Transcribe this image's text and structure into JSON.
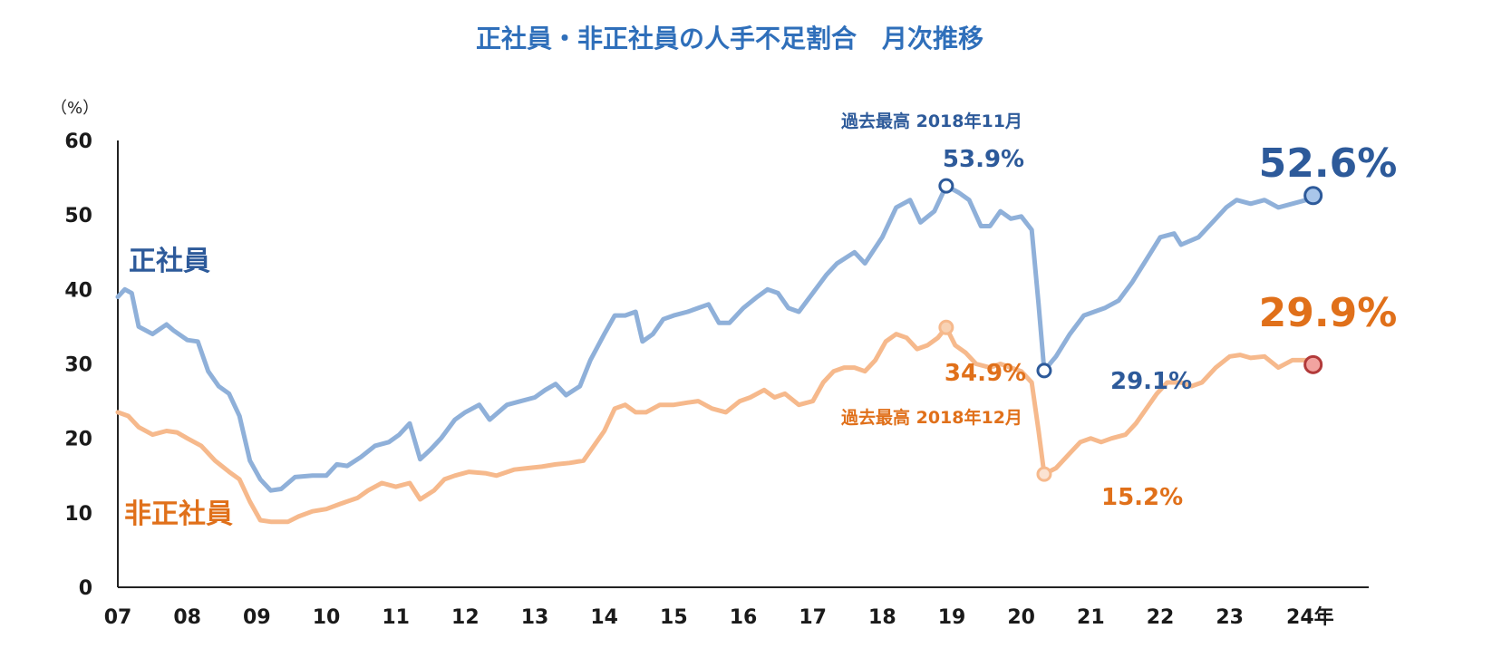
{
  "chart_data": {
    "type": "line",
    "title": "正社員・非正社員の人手不足割合　月次推移",
    "ylabel": "（%）",
    "xlabel": "",
    "ylim": [
      0,
      60
    ],
    "yticks": [
      "0",
      "10",
      "20",
      "30",
      "40",
      "50",
      "60"
    ],
    "xticks": [
      "07",
      "08",
      "09",
      "10",
      "11",
      "12",
      "13",
      "14",
      "15",
      "16",
      "17",
      "18",
      "19",
      "20",
      "21",
      "22",
      "23",
      "24年"
    ],
    "colors": {
      "regular": "#8fb0d9",
      "nonregular": "#f6b98c",
      "regular_text": "#2d5a9a",
      "nonregular_text": "#e0701a",
      "title": "#2f6fba"
    },
    "series": [
      {
        "name": "正社員",
        "values": [
          [
            2007.0,
            39
          ],
          [
            2007.1,
            40
          ],
          [
            2007.2,
            39.5
          ],
          [
            2007.3,
            35
          ],
          [
            2007.5,
            34
          ],
          [
            2007.7,
            35.3
          ],
          [
            2007.8,
            34.5
          ],
          [
            2008.0,
            33.2
          ],
          [
            2008.15,
            33
          ],
          [
            2008.3,
            29
          ],
          [
            2008.45,
            27
          ],
          [
            2008.6,
            26
          ],
          [
            2008.75,
            23
          ],
          [
            2008.9,
            17
          ],
          [
            2009.05,
            14.5
          ],
          [
            2009.2,
            13
          ],
          [
            2009.35,
            13.2
          ],
          [
            2009.55,
            14.8
          ],
          [
            2009.8,
            15
          ],
          [
            2010.0,
            15
          ],
          [
            2010.15,
            16.5
          ],
          [
            2010.3,
            16.3
          ],
          [
            2010.5,
            17.5
          ],
          [
            2010.7,
            19
          ],
          [
            2010.9,
            19.5
          ],
          [
            2011.05,
            20.5
          ],
          [
            2011.2,
            22
          ],
          [
            2011.35,
            17.2
          ],
          [
            2011.5,
            18.5
          ],
          [
            2011.65,
            20
          ],
          [
            2011.85,
            22.5
          ],
          [
            2012.0,
            23.5
          ],
          [
            2012.2,
            24.5
          ],
          [
            2012.35,
            22.5
          ],
          [
            2012.6,
            24.5
          ],
          [
            2012.8,
            25
          ],
          [
            2013.0,
            25.5
          ],
          [
            2013.15,
            26.5
          ],
          [
            2013.3,
            27.3
          ],
          [
            2013.45,
            25.8
          ],
          [
            2013.65,
            27
          ],
          [
            2013.8,
            30.5
          ],
          [
            2014.0,
            34
          ],
          [
            2014.15,
            36.5
          ],
          [
            2014.3,
            36.5
          ],
          [
            2014.45,
            37
          ],
          [
            2014.55,
            33
          ],
          [
            2014.7,
            34
          ],
          [
            2014.85,
            36
          ],
          [
            2015.0,
            36.5
          ],
          [
            2015.2,
            37
          ],
          [
            2015.35,
            37.5
          ],
          [
            2015.5,
            38
          ],
          [
            2015.65,
            35.5
          ],
          [
            2015.8,
            35.5
          ],
          [
            2016.0,
            37.5
          ],
          [
            2016.2,
            39
          ],
          [
            2016.35,
            40
          ],
          [
            2016.5,
            39.5
          ],
          [
            2016.65,
            37.5
          ],
          [
            2016.8,
            37
          ],
          [
            2017.0,
            39.5
          ],
          [
            2017.2,
            42
          ],
          [
            2017.35,
            43.5
          ],
          [
            2017.6,
            45
          ],
          [
            2017.75,
            43.5
          ],
          [
            2018.0,
            47
          ],
          [
            2018.2,
            51
          ],
          [
            2018.4,
            52
          ],
          [
            2018.55,
            49
          ],
          [
            2018.75,
            50.5
          ],
          [
            2018.92,
            53.9
          ],
          [
            2019.1,
            53
          ],
          [
            2019.25,
            52
          ],
          [
            2019.42,
            48.5
          ],
          [
            2019.55,
            48.5
          ],
          [
            2019.7,
            50.5
          ],
          [
            2019.85,
            49.5
          ],
          [
            2020.0,
            49.8
          ],
          [
            2020.15,
            48
          ],
          [
            2020.25,
            38
          ],
          [
            2020.33,
            29.1
          ],
          [
            2020.5,
            31
          ],
          [
            2020.7,
            34
          ],
          [
            2020.9,
            36.5
          ],
          [
            2021.05,
            37
          ],
          [
            2021.2,
            37.5
          ],
          [
            2021.4,
            38.5
          ],
          [
            2021.6,
            41
          ],
          [
            2021.8,
            44
          ],
          [
            2022.0,
            47
          ],
          [
            2022.2,
            47.5
          ],
          [
            2022.3,
            46
          ],
          [
            2022.55,
            47
          ],
          [
            2022.75,
            49
          ],
          [
            2022.95,
            51
          ],
          [
            2023.1,
            52
          ],
          [
            2023.3,
            51.5
          ],
          [
            2023.5,
            52
          ],
          [
            2023.7,
            51
          ],
          [
            2023.9,
            51.5
          ],
          [
            2024.1,
            52
          ],
          [
            2024.2,
            52.6
          ]
        ]
      },
      {
        "name": "非正社員",
        "values": [
          [
            2007.0,
            23.5
          ],
          [
            2007.15,
            23
          ],
          [
            2007.3,
            21.5
          ],
          [
            2007.5,
            20.5
          ],
          [
            2007.7,
            21
          ],
          [
            2007.85,
            20.8
          ],
          [
            2008.0,
            20
          ],
          [
            2008.2,
            19
          ],
          [
            2008.4,
            17
          ],
          [
            2008.6,
            15.5
          ],
          [
            2008.75,
            14.5
          ],
          [
            2008.9,
            11.5
          ],
          [
            2009.05,
            9
          ],
          [
            2009.2,
            8.8
          ],
          [
            2009.45,
            8.8
          ],
          [
            2009.6,
            9.5
          ],
          [
            2009.8,
            10.2
          ],
          [
            2010.0,
            10.5
          ],
          [
            2010.2,
            11.2
          ],
          [
            2010.45,
            12
          ],
          [
            2010.6,
            13
          ],
          [
            2010.8,
            14
          ],
          [
            2011.0,
            13.5
          ],
          [
            2011.2,
            14
          ],
          [
            2011.35,
            11.8
          ],
          [
            2011.55,
            13
          ],
          [
            2011.7,
            14.5
          ],
          [
            2011.85,
            15
          ],
          [
            2012.05,
            15.5
          ],
          [
            2012.3,
            15.3
          ],
          [
            2012.45,
            15
          ],
          [
            2012.7,
            15.8
          ],
          [
            2012.9,
            16
          ],
          [
            2013.1,
            16.2
          ],
          [
            2013.3,
            16.5
          ],
          [
            2013.5,
            16.7
          ],
          [
            2013.7,
            17
          ],
          [
            2013.85,
            19
          ],
          [
            2014.0,
            21
          ],
          [
            2014.15,
            24
          ],
          [
            2014.3,
            24.5
          ],
          [
            2014.45,
            23.5
          ],
          [
            2014.6,
            23.5
          ],
          [
            2014.8,
            24.5
          ],
          [
            2015.0,
            24.5
          ],
          [
            2015.2,
            24.8
          ],
          [
            2015.35,
            25
          ],
          [
            2015.55,
            24
          ],
          [
            2015.75,
            23.5
          ],
          [
            2015.95,
            25
          ],
          [
            2016.1,
            25.5
          ],
          [
            2016.3,
            26.5
          ],
          [
            2016.45,
            25.5
          ],
          [
            2016.6,
            26
          ],
          [
            2016.8,
            24.5
          ],
          [
            2017.0,
            25
          ],
          [
            2017.15,
            27.5
          ],
          [
            2017.3,
            29
          ],
          [
            2017.45,
            29.5
          ],
          [
            2017.6,
            29.5
          ],
          [
            2017.75,
            29
          ],
          [
            2017.9,
            30.5
          ],
          [
            2018.05,
            33
          ],
          [
            2018.2,
            34
          ],
          [
            2018.35,
            33.5
          ],
          [
            2018.5,
            32
          ],
          [
            2018.65,
            32.5
          ],
          [
            2018.8,
            33.5
          ],
          [
            2018.92,
            34.9
          ],
          [
            2019.05,
            32.5
          ],
          [
            2019.2,
            31.5
          ],
          [
            2019.35,
            30
          ],
          [
            2019.55,
            29.5
          ],
          [
            2019.7,
            30
          ],
          [
            2019.85,
            29.5
          ],
          [
            2020.0,
            29
          ],
          [
            2020.15,
            27.5
          ],
          [
            2020.25,
            21
          ],
          [
            2020.33,
            15.2
          ],
          [
            2020.5,
            16
          ],
          [
            2020.7,
            18
          ],
          [
            2020.85,
            19.5
          ],
          [
            2021.0,
            20
          ],
          [
            2021.15,
            19.5
          ],
          [
            2021.3,
            20
          ],
          [
            2021.5,
            20.5
          ],
          [
            2021.65,
            22
          ],
          [
            2021.8,
            24
          ],
          [
            2021.95,
            26
          ],
          [
            2022.1,
            27.5
          ],
          [
            2022.3,
            27.5
          ],
          [
            2022.45,
            27
          ],
          [
            2022.6,
            27.5
          ],
          [
            2022.8,
            29.5
          ],
          [
            2023.0,
            31
          ],
          [
            2023.15,
            31.2
          ],
          [
            2023.3,
            30.8
          ],
          [
            2023.5,
            31
          ],
          [
            2023.7,
            29.5
          ],
          [
            2023.9,
            30.5
          ],
          [
            2024.1,
            30.5
          ],
          [
            2024.2,
            29.9
          ]
        ]
      }
    ],
    "labels": {
      "regular": "正社員",
      "nonregular": "非正社員"
    },
    "annotations": {
      "regular_peak_note": "過去最高 2018年11月",
      "regular_peak_value": "53.9%",
      "regular_trough_value": "29.1%",
      "regular_latest_value": "52.6%",
      "nonregular_peak_note": "過去最高 2018年12月",
      "nonregular_peak_value": "34.9%",
      "nonregular_trough_value": "15.2%",
      "nonregular_latest_value": "29.9%"
    }
  }
}
